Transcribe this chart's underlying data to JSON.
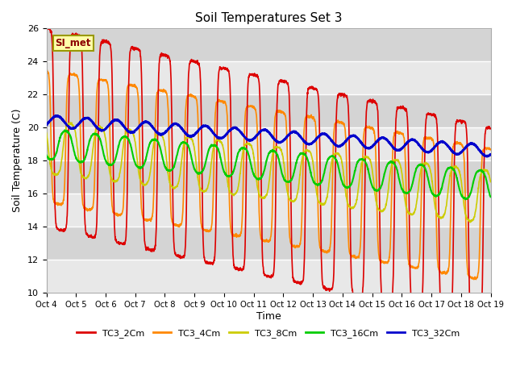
{
  "title": "Soil Temperatures Set 3",
  "xlabel": "Time",
  "ylabel": "Soil Temperature (C)",
  "ylim": [
    10,
    26
  ],
  "xlim": [
    0,
    15
  ],
  "x_tick_labels": [
    "Oct 4",
    "Oct 5",
    "Oct 6",
    "Oct 7",
    "Oct 8",
    "Oct 9",
    "Oct 10",
    "Oct 11",
    "Oct 12",
    "Oct 13",
    "Oct 14",
    "Oct 15",
    "Oct 16",
    "Oct 17",
    "Oct 18",
    "Oct 19"
  ],
  "annotation_text": "SI_met",
  "bg_color": "#e8e8e8",
  "bg_color_alt": "#d4d4d4",
  "series": {
    "TC3_2Cm": {
      "color": "#dd0000",
      "lw": 1.2
    },
    "TC3_4Cm": {
      "color": "#ff8800",
      "lw": 1.2
    },
    "TC3_8Cm": {
      "color": "#cccc00",
      "lw": 1.2
    },
    "TC3_16Cm": {
      "color": "#00cc00",
      "lw": 1.5
    },
    "TC3_32Cm": {
      "color": "#0000cc",
      "lw": 2.0
    }
  }
}
